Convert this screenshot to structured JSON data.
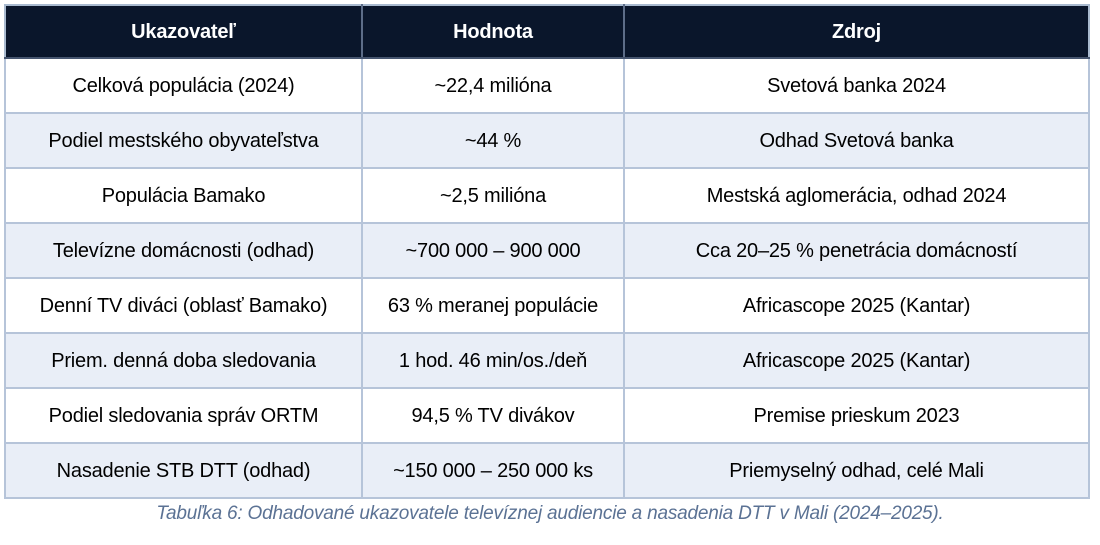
{
  "table": {
    "headers": [
      "Ukazovateľ",
      "Hodnota",
      "Zdroj"
    ],
    "rows": [
      [
        "Celková populácia (2024)",
        "~22,4 milióna",
        "Svetová banka 2024"
      ],
      [
        "Podiel mestského obyvateľstva",
        "~44 %",
        "Odhad Svetová banka"
      ],
      [
        "Populácia Bamako",
        "~2,5 milióna",
        "Mestská aglomerácia, odhad 2024"
      ],
      [
        "Televízne domácnosti (odhad)",
        "~700 000 – 900 000",
        "Cca 20–25 % penetrácia domácností"
      ],
      [
        "Denní TV diváci (oblasť Bamako)",
        "63 % meranej populácie",
        "Africascope 2025 (Kantar)"
      ],
      [
        "Priem. denná doba sledovania",
        "1 hod. 46 min/os./deň",
        "Africascope 2025 (Kantar)"
      ],
      [
        "Podiel sledovania správ ORTM",
        "94,5 % TV divákov",
        "Premise prieskum 2023"
      ],
      [
        "Nasadenie STB DTT (odhad)",
        "~150 000 – 250 000 ks",
        "Priemyselný odhad, celé Mali"
      ]
    ]
  },
  "caption": "Tabuľka 6: Odhadované ukazovatele televíznej audiencie a nasadenia DTT v Mali (2024–2025).",
  "colors": {
    "header_bg": "#0a162b",
    "header_text": "#ffffff",
    "row_bg": "#ffffff",
    "row_alt_bg": "#e9eef7",
    "grid_line": "#b6c4d9",
    "outer_border": "#a9bacf",
    "header_divider": "#5d6d88",
    "header_bottom": "#46556f",
    "body_text": "#000000",
    "caption_text": "#5b7294"
  }
}
